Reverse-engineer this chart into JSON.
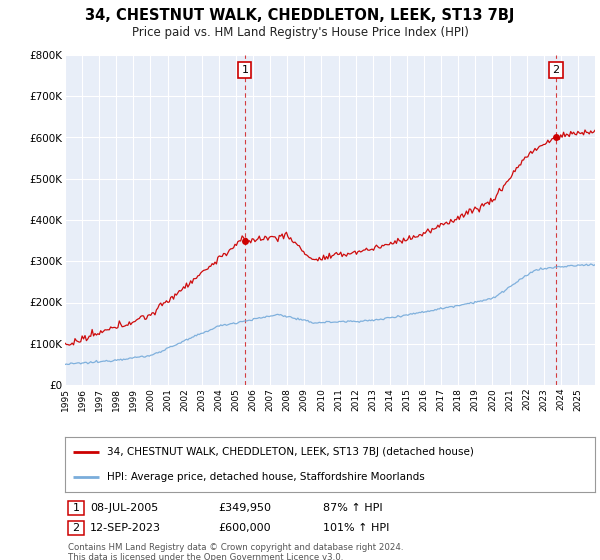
{
  "title": "34, CHESTNUT WALK, CHEDDLETON, LEEK, ST13 7BJ",
  "subtitle": "Price paid vs. HM Land Registry's House Price Index (HPI)",
  "ylim": [
    0,
    800000
  ],
  "yticks": [
    0,
    100000,
    200000,
    300000,
    400000,
    500000,
    600000,
    700000,
    800000
  ],
  "ytick_labels": [
    "£0",
    "£100K",
    "£200K",
    "£300K",
    "£400K",
    "£500K",
    "£600K",
    "£700K",
    "£800K"
  ],
  "property_color": "#cc0000",
  "hpi_color": "#7aaddb",
  "legend_property": "34, CHESTNUT WALK, CHEDDLETON, LEEK, ST13 7BJ (detached house)",
  "legend_hpi": "HPI: Average price, detached house, Staffordshire Moorlands",
  "sale1_label": "1",
  "sale1_date": "08-JUL-2005",
  "sale1_price": "£349,950",
  "sale1_hpi": "87% ↑ HPI",
  "sale1_year": 2005.52,
  "sale1_value": 349950,
  "sale2_label": "2",
  "sale2_date": "12-SEP-2023",
  "sale2_price": "£600,000",
  "sale2_hpi": "101% ↑ HPI",
  "sale2_year": 2023.71,
  "sale2_value": 600000,
  "footnote1": "Contains HM Land Registry data © Crown copyright and database right 2024.",
  "footnote2": "This data is licensed under the Open Government Licence v3.0.",
  "bg_color": "#ffffff",
  "plot_bg_color": "#e8eef8",
  "grid_color": "#ffffff"
}
